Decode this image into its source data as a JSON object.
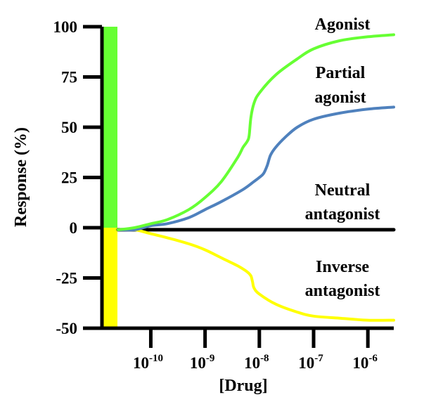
{
  "chart_data": {
    "type": "line",
    "xlabel": "[Drug]",
    "ylabel": "Response (%)",
    "x_scale": "log",
    "x_ticks": [
      {
        "base": "10",
        "exp": "-10",
        "value": 1e-10
      },
      {
        "base": "10",
        "exp": "-9",
        "value": 1e-09
      },
      {
        "base": "10",
        "exp": "-8",
        "value": 1e-08
      },
      {
        "base": "10",
        "exp": "-7",
        "value": 1e-07
      },
      {
        "base": "10",
        "exp": "-6",
        "value": 1e-06
      }
    ],
    "y_ticks": [
      "100",
      "75",
      "50",
      "25",
      "0",
      "-25",
      "-50"
    ],
    "ylim": [
      -50,
      100
    ],
    "xlim": [
      2.5e-11,
      3e-06
    ],
    "bands": [
      {
        "from": 0,
        "to": 100,
        "color": "#66ff33"
      },
      {
        "from": -50,
        "to": 0,
        "color": "#ffff00"
      }
    ],
    "series": [
      {
        "name": "Agonist",
        "label_lines": [
          "Agonist"
        ],
        "color": "#66ff33",
        "x": [
          2.5e-11,
          5e-11,
          1e-10,
          2e-10,
          5e-10,
          1e-09,
          2e-09,
          4e-09,
          5e-09,
          6e-09,
          6.5e-09,
          7e-09,
          8e-09,
          1e-08,
          2e-08,
          5e-08,
          1e-07,
          3e-07,
          1e-06,
          3e-06
        ],
        "y": [
          -1,
          0,
          2,
          4,
          9,
          15,
          23,
          35,
          40,
          43,
          46,
          55,
          62,
          67,
          76,
          84,
          89,
          93,
          95,
          96
        ]
      },
      {
        "name": "Partial agonist",
        "label_lines": [
          "Partial",
          "agonist"
        ],
        "color": "#4f81bd",
        "x": [
          2.5e-11,
          5e-11,
          1e-10,
          2e-10,
          5e-10,
          1e-09,
          2e-09,
          5e-09,
          8e-09,
          1e-08,
          1.2e-08,
          1.4e-08,
          1.6e-08,
          2e-08,
          3e-08,
          5e-08,
          1e-07,
          3e-07,
          1e-06,
          3e-06
        ],
        "y": [
          -1,
          -1,
          1,
          2,
          5,
          9,
          13,
          19,
          23,
          25,
          27,
          31,
          36,
          40,
          45,
          50,
          54,
          57,
          59,
          60
        ]
      },
      {
        "name": "Neutral antagonist",
        "label_lines": [
          "Neutral",
          "antagonist"
        ],
        "color": "#000000",
        "x": [
          2.5e-11,
          3e-06
        ],
        "y": [
          -1,
          -1
        ]
      },
      {
        "name": "Inverse antagonist",
        "label_lines": [
          "Inverse",
          "antagonist"
        ],
        "color": "#ffff00",
        "x": [
          2.5e-11,
          5e-11,
          1e-10,
          2e-10,
          5e-10,
          1e-09,
          2e-09,
          4e-09,
          6e-09,
          7e-09,
          7.5e-09,
          8e-09,
          1e-08,
          2e-08,
          5e-08,
          1e-07,
          3e-07,
          1e-06,
          3e-06
        ],
        "y": [
          -1,
          -1,
          -3,
          -5,
          -8,
          -11,
          -15,
          -19,
          -22,
          -24,
          -27,
          -30,
          -33,
          -38,
          -42,
          -44,
          -45,
          -46,
          -46
        ]
      }
    ],
    "grid": false,
    "legend": "inline labels at right"
  }
}
